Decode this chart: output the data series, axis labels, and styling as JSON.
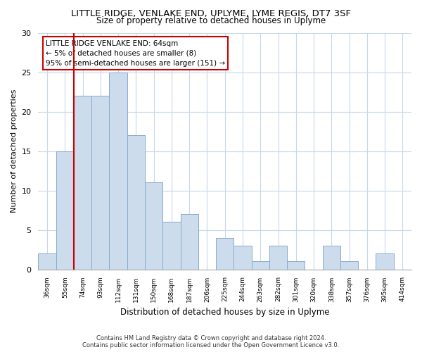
{
  "title": "LITTLE RIDGE, VENLAKE END, UPLYME, LYME REGIS, DT7 3SF",
  "subtitle": "Size of property relative to detached houses in Uplyme",
  "xlabel": "Distribution of detached houses by size in Uplyme",
  "ylabel": "Number of detached properties",
  "bar_labels": [
    "36sqm",
    "55sqm",
    "74sqm",
    "93sqm",
    "112sqm",
    "131sqm",
    "150sqm",
    "168sqm",
    "187sqm",
    "206sqm",
    "225sqm",
    "244sqm",
    "263sqm",
    "282sqm",
    "301sqm",
    "320sqm",
    "338sqm",
    "357sqm",
    "376sqm",
    "395sqm",
    "414sqm"
  ],
  "bar_values": [
    2,
    15,
    22,
    22,
    25,
    17,
    11,
    6,
    7,
    0,
    4,
    3,
    1,
    3,
    1,
    0,
    3,
    1,
    0,
    2,
    0
  ],
  "bar_color": "#ccdcec",
  "bar_edge_color": "#88aacc",
  "marker_line_color": "#cc0000",
  "annotation_line1": "LITTLE RIDGE VENLAKE END: 64sqm",
  "annotation_line2": "← 5% of detached houses are smaller (8)",
  "annotation_line3": "95% of semi-detached houses are larger (151) →",
  "annotation_box_color": "#ffffff",
  "annotation_box_edge": "#cc0000",
  "ylim": [
    0,
    30
  ],
  "yticks": [
    0,
    5,
    10,
    15,
    20,
    25,
    30
  ],
  "grid_color": "#c8d8e8",
  "title_fontsize": 9.5,
  "subtitle_fontsize": 8.5,
  "footer_line1": "Contains HM Land Registry data © Crown copyright and database right 2024.",
  "footer_line2": "Contains public sector information licensed under the Open Government Licence v3.0."
}
